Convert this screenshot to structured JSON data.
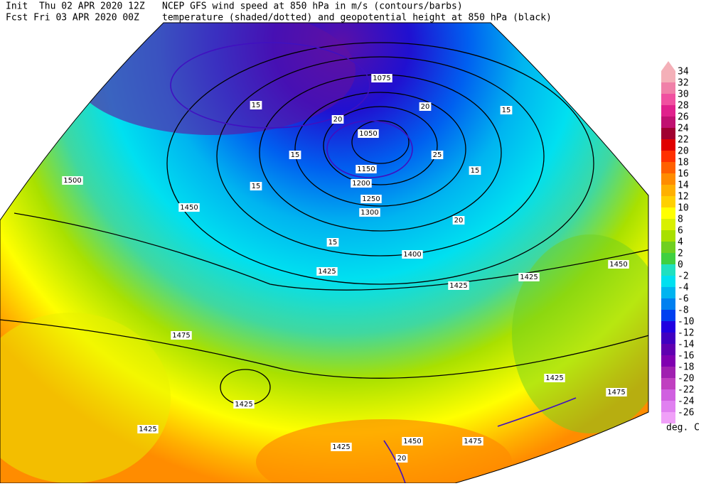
{
  "header": {
    "init": "Init  Thu 02 APR 2020 12Z",
    "fcst": "Fcst Fri 03 APR 2020 00Z",
    "line1": "NCEP GFS wind speed at 850 hPa in m/s (contours/barbs)",
    "line2": "temperature (shaded/dotted) and geopotential height at 850 hPa (black)"
  },
  "colorbar": {
    "levels": [
      34,
      32,
      30,
      28,
      26,
      24,
      22,
      20,
      18,
      16,
      14,
      12,
      10,
      8,
      6,
      4,
      2,
      0,
      -2,
      -4,
      -6,
      -8,
      -10,
      -12,
      -14,
      -16,
      -18,
      -20,
      -22,
      -24,
      -26
    ],
    "colors": [
      "#f4b0b8",
      "#f080a8",
      "#f050a0",
      "#e0208c",
      "#c01070",
      "#a00030",
      "#e00000",
      "#ff3000",
      "#ff6000",
      "#ff8c00",
      "#ffb000",
      "#ffd000",
      "#ffff00",
      "#d8f000",
      "#a8e000",
      "#70d020",
      "#40d040",
      "#20e0c0",
      "#00e0f0",
      "#00b4f0",
      "#0080f0",
      "#0040f0",
      "#2000e0",
      "#4000c0",
      "#6000b0",
      "#8000b0",
      "#a020b0",
      "#c040c0",
      "#d060e0",
      "#e080f0",
      "#f0a0f8"
    ],
    "unit": "deg. C"
  },
  "map_labels": [
    "1500",
    "1450",
    "1475",
    "1425",
    "1425",
    "1425",
    "1400",
    "1425",
    "1450",
    "1425",
    "1475",
    "1425",
    "1475",
    "1450",
    "1425",
    "1300",
    "1250",
    "1200",
    "1150",
    "1075",
    "1050",
    "15",
    "15",
    "15",
    "20",
    "20",
    "25",
    "15",
    "15",
    "20",
    "15",
    "20"
  ]
}
